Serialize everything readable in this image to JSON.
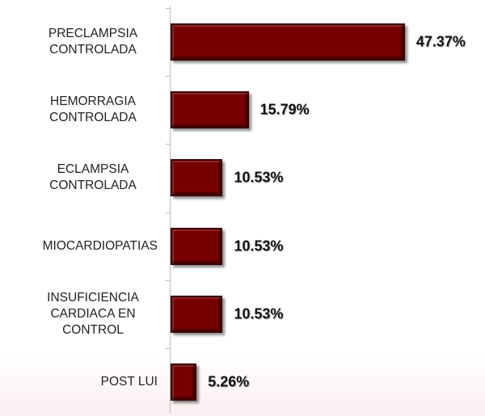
{
  "chart_data": {
    "type": "bar",
    "orientation": "horizontal",
    "categories": [
      "PRECLAMPSIA CONTROLADA",
      "HEMORRAGIA CONTROLADA",
      "ECLAMPSIA CONTROLADA",
      "MIOCARDIOPATIAS",
      "INSUFICIENCIA CARDIACA EN CONTROL",
      "POST LUI"
    ],
    "values": [
      47.37,
      15.79,
      10.53,
      10.53,
      10.53,
      5.26
    ],
    "value_labels": [
      "47.37%",
      "15.79%",
      "10.53%",
      "10.53%",
      "10.53%",
      "5.26%"
    ],
    "color": "#760000"
  }
}
